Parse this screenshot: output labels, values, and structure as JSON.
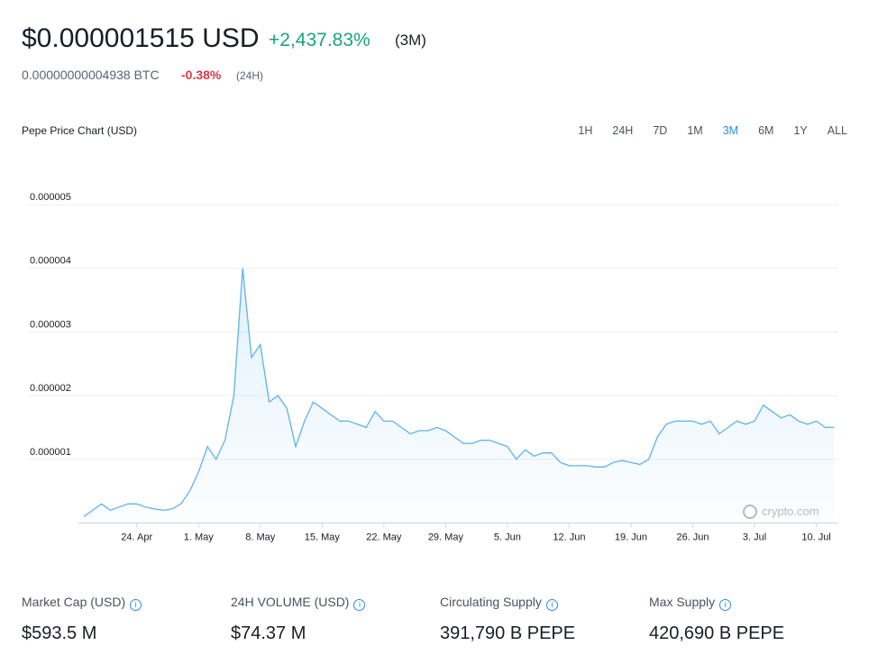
{
  "header": {
    "price": "$0.000001515 USD",
    "change": "+2,437.83%",
    "period": "(3M)",
    "btc_price": "0.00000000004938 BTC",
    "btc_change": "-0.38%",
    "btc_period": "(24H)"
  },
  "ranges": [
    "1H",
    "24H",
    "7D",
    "1M",
    "3M",
    "6M",
    "1Y",
    "ALL"
  ],
  "chart_data": {
    "type": "line",
    "title": "Pepe Price Chart (USD)",
    "watermark": "crypto.com",
    "color": "#5db3ef",
    "grid": true,
    "x": [
      "18. Apr",
      "19. Apr",
      "20. Apr",
      "21. Apr",
      "22. Apr",
      "23. Apr",
      "24. Apr",
      "25. Apr",
      "26. Apr",
      "27. Apr",
      "28. Apr",
      "29. Apr",
      "30. Apr",
      "1. May",
      "2. May",
      "3. May",
      "4. May",
      "5. May",
      "6. May",
      "7. May",
      "8. May",
      "9. May",
      "10. May",
      "11. May",
      "12. May",
      "13. May",
      "14. May",
      "15. May",
      "16. May",
      "17. May",
      "18. May",
      "19. May",
      "20. May",
      "21. May",
      "22. May",
      "23. May",
      "24. May",
      "25. May",
      "26. May",
      "27. May",
      "28. May",
      "29. May",
      "30. May",
      "31. May",
      "1. Jun",
      "2. Jun",
      "3. Jun",
      "4. Jun",
      "5. Jun",
      "6. Jun",
      "7. Jun",
      "8. Jun",
      "9. Jun",
      "10. Jun",
      "11. Jun",
      "12. Jun",
      "13. Jun",
      "14. Jun",
      "15. Jun",
      "16. Jun",
      "17. Jun",
      "18. Jun",
      "19. Jun",
      "20. Jun",
      "21. Jun",
      "22. Jun",
      "23. Jun",
      "24. Jun",
      "25. Jun",
      "26. Jun",
      "27. Jun",
      "28. Jun",
      "29. Jun",
      "30. Jun",
      "1. Jul",
      "2. Jul",
      "3. Jul",
      "4. Jul",
      "5. Jul",
      "6. Jul",
      "7. Jul",
      "8. Jul",
      "9. Jul",
      "10. Jul",
      "11. Jul",
      "12. Jul"
    ],
    "values": [
      1e-07,
      2e-07,
      3e-07,
      2e-07,
      2.5e-07,
      3e-07,
      3e-07,
      2.5e-07,
      2.2e-07,
      2e-07,
      2.2e-07,
      3e-07,
      5e-07,
      8e-07,
      1.2e-06,
      1e-06,
      1.3e-06,
      2e-06,
      4e-06,
      2.6e-06,
      2.8e-06,
      1.9e-06,
      2e-06,
      1.8e-06,
      1.2e-06,
      1.6e-06,
      1.9e-06,
      1.8e-06,
      1.7e-06,
      1.6e-06,
      1.6e-06,
      1.55e-06,
      1.5e-06,
      1.75e-06,
      1.6e-06,
      1.6e-06,
      1.5e-06,
      1.4e-06,
      1.45e-06,
      1.45e-06,
      1.5e-06,
      1.45e-06,
      1.35e-06,
      1.25e-06,
      1.25e-06,
      1.3e-06,
      1.3e-06,
      1.25e-06,
      1.2e-06,
      1e-06,
      1.15e-06,
      1.05e-06,
      1.1e-06,
      1.1e-06,
      9.5e-07,
      9e-07,
      9e-07,
      9e-07,
      8.8e-07,
      8.8e-07,
      9.5e-07,
      9.8e-07,
      9.5e-07,
      9.2e-07,
      1e-06,
      1.35e-06,
      1.55e-06,
      1.6e-06,
      1.6e-06,
      1.6e-06,
      1.55e-06,
      1.6e-06,
      1.4e-06,
      1.5e-06,
      1.6e-06,
      1.55e-06,
      1.6e-06,
      1.85e-06,
      1.75e-06,
      1.65e-06,
      1.7e-06,
      1.6e-06,
      1.55e-06,
      1.6e-06,
      1.5e-06,
      1.5e-06
    ],
    "xticks": [
      "24. Apr",
      "1. May",
      "8. May",
      "15. May",
      "22. May",
      "29. May",
      "5. Jun",
      "12. Jun",
      "19. Jun",
      "26. Jun",
      "3. Jul",
      "10. Jul"
    ],
    "ylim": [
      0,
      5e-06
    ],
    "yticks": [
      1e-06,
      2e-06,
      3e-06,
      4e-06,
      5e-06
    ]
  },
  "stats": [
    {
      "label": "Market Cap (USD)",
      "value": "$593.5 M"
    },
    {
      "label": "24H VOLUME (USD)",
      "value": "$74.37 M"
    },
    {
      "label": "Circulating Supply",
      "value": "391,790 B PEPE"
    },
    {
      "label": "Max Supply",
      "value": "420,690 B PEPE"
    }
  ]
}
